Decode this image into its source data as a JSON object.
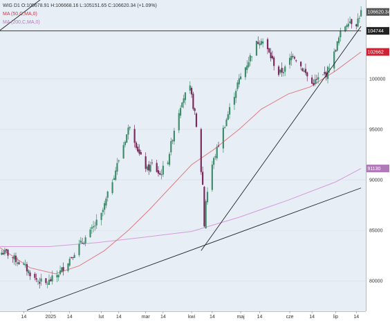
{
  "header": {
    "symbol_line": "WIG D1 O:105678.91 H:106668.16 L:105151.65 C:106620.34 (+1.09%)",
    "ma50_label": "MA (50,C,MA,0)",
    "ma200_label": "MA (200,C,MA,0)"
  },
  "colors": {
    "up": "#3e8e6b",
    "down": "#7b2a5e",
    "ma50": "#e07a80",
    "ma200": "#d49ad8",
    "trendline": "#222222",
    "plot_bg": "#e8eef6",
    "price_badge": "#555555",
    "level_badge": "#222222",
    "ma50_badge": "#cc2233",
    "ma200_badge": "#b07ab8"
  },
  "chart_data": {
    "type": "candlestick",
    "ylim": [
      77000,
      107800
    ],
    "yticks": [
      80000,
      85000,
      90000,
      95000,
      100000
    ],
    "ytick_labels": [
      "80000",
      "85000",
      "90000",
      "95000",
      "100000"
    ],
    "x_tick_labels": [
      {
        "label": "14",
        "x": "2024-12-16"
      },
      {
        "label": "2025",
        "x": "2025-01-02"
      },
      {
        "label": "14",
        "x": "2025-01-14"
      },
      {
        "label": "lut",
        "x": "2025-02-03"
      },
      {
        "label": "14",
        "x": "2025-02-14"
      },
      {
        "label": "mar",
        "x": "2025-03-03"
      },
      {
        "label": "14",
        "x": "2025-03-14"
      },
      {
        "label": "kwi",
        "x": "2025-04-01"
      },
      {
        "label": "14",
        "x": "2025-04-14"
      },
      {
        "label": "maj",
        "x": "2025-05-02"
      },
      {
        "label": "14",
        "x": "2025-05-14"
      },
      {
        "label": "cze",
        "x": "2025-06-02"
      },
      {
        "label": "14",
        "x": "2025-06-16"
      },
      {
        "label": "lip",
        "x": "2025-07-01"
      },
      {
        "label": "14",
        "x": "2025-07-14"
      }
    ],
    "price_badges": [
      {
        "label": "106620.34",
        "y": 106620.34,
        "kind": "price"
      },
      {
        "label": "104744",
        "y": 104744,
        "kind": "level"
      },
      {
        "label": "102662",
        "y": 102662,
        "kind": "ma50"
      },
      {
        "label": "91130",
        "y": 91130,
        "kind": "ma200"
      }
    ],
    "horizontal_level": 104744,
    "anchors": [
      [
        "2024-12-05",
        82800
      ],
      [
        "2024-12-16",
        81500
      ],
      [
        "2024-12-23",
        80200
      ],
      [
        "2024-12-30",
        79700
      ],
      [
        "2025-01-03",
        80200
      ],
      [
        "2025-01-08",
        80900
      ],
      [
        "2025-01-14",
        82200
      ],
      [
        "2025-01-20",
        83500
      ],
      [
        "2025-01-27",
        84800
      ],
      [
        "2025-02-03",
        86500
      ],
      [
        "2025-02-07",
        88500
      ],
      [
        "2025-02-12",
        91000
      ],
      [
        "2025-02-17",
        93500
      ],
      [
        "2025-02-21",
        95500
      ],
      [
        "2025-02-27",
        92500
      ],
      [
        "2025-03-04",
        91000
      ],
      [
        "2025-03-07",
        91500
      ],
      [
        "2025-03-12",
        90500
      ],
      [
        "2025-03-17",
        92000
      ],
      [
        "2025-03-21",
        95000
      ],
      [
        "2025-03-26",
        98000
      ],
      [
        "2025-03-31",
        99000
      ],
      [
        "2025-04-03",
        96500
      ],
      [
        "2025-04-08",
        89500
      ],
      [
        "2025-04-09",
        85500
      ],
      [
        "2025-04-10",
        88000
      ],
      [
        "2025-04-14",
        91500
      ],
      [
        "2025-04-18",
        93500
      ],
      [
        "2025-04-24",
        96500
      ],
      [
        "2025-04-30",
        99500
      ],
      [
        "2025-05-06",
        101500
      ],
      [
        "2025-05-12",
        103500
      ],
      [
        "2025-05-15",
        104000
      ],
      [
        "2025-05-20",
        102500
      ],
      [
        "2025-05-26",
        100500
      ],
      [
        "2025-05-30",
        101000
      ],
      [
        "2025-06-04",
        102500
      ],
      [
        "2025-06-10",
        101000
      ],
      [
        "2025-06-16",
        99500
      ],
      [
        "2025-06-20",
        100000
      ],
      [
        "2025-06-25",
        100500
      ],
      [
        "2025-06-30",
        102500
      ],
      [
        "2025-07-04",
        104500
      ],
      [
        "2025-07-09",
        105800
      ],
      [
        "2025-07-14",
        105500
      ],
      [
        "2025-07-17",
        106620
      ]
    ],
    "ma50_points": [
      [
        "2024-12-01",
        83300
      ],
      [
        "2024-12-20",
        81300
      ],
      [
        "2025-01-05",
        80700
      ],
      [
        "2025-01-20",
        81500
      ],
      [
        "2025-02-05",
        83000
      ],
      [
        "2025-02-20",
        85000
      ],
      [
        "2025-03-05",
        87000
      ],
      [
        "2025-03-20",
        89500
      ],
      [
        "2025-04-01",
        91500
      ],
      [
        "2025-04-15",
        93000
      ],
      [
        "2025-05-01",
        95000
      ],
      [
        "2025-05-15",
        97000
      ],
      [
        "2025-06-01",
        98500
      ],
      [
        "2025-06-15",
        99200
      ],
      [
        "2025-07-01",
        100800
      ],
      [
        "2025-07-17",
        102662
      ]
    ],
    "ma200_points": [
      [
        "2024-12-01",
        83400
      ],
      [
        "2025-01-01",
        83400
      ],
      [
        "2025-02-01",
        83800
      ],
      [
        "2025-03-01",
        84300
      ],
      [
        "2025-04-01",
        84900
      ],
      [
        "2025-05-01",
        86300
      ],
      [
        "2025-06-01",
        88000
      ],
      [
        "2025-07-01",
        89800
      ],
      [
        "2025-07-17",
        91130
      ]
    ],
    "trendlines": [
      {
        "from": [
          "2024-12-01",
          104800
        ],
        "to": [
          "2025-03-01",
          115500
        ]
      },
      {
        "from": [
          "2024-12-18",
          77100
        ],
        "to": [
          "2025-07-17",
          89200
        ]
      },
      {
        "from": [
          "2025-04-07",
          83000
        ],
        "to": [
          "2025-07-17",
          105200
        ]
      },
      {
        "from": [
          "2024-12-01",
          104744
        ],
        "to": [
          "2025-07-17",
          104744
        ]
      }
    ]
  }
}
